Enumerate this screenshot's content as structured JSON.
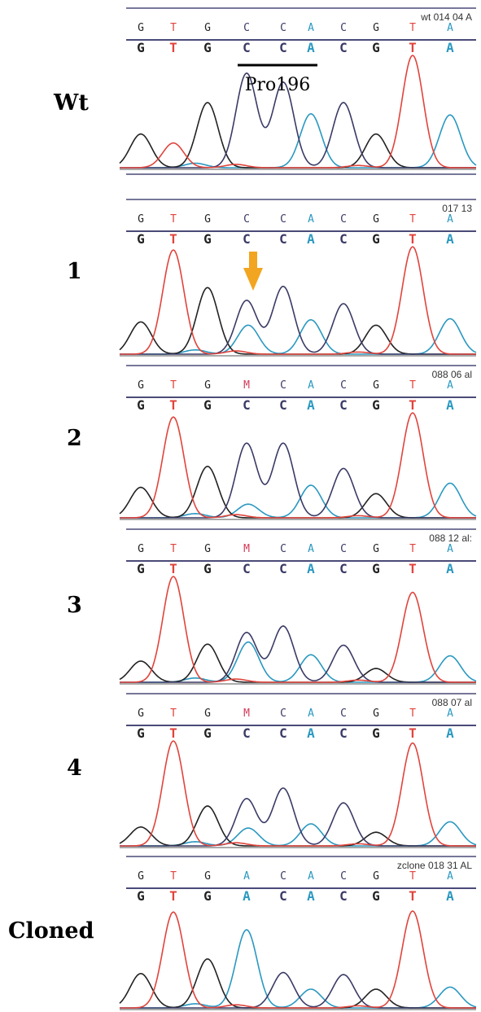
{
  "colors": {
    "A": "#2a98c0",
    "C": "#3a3a66",
    "G": "#222222",
    "T": "#e0443c",
    "M": "#d43a58",
    "frame": "#4a4a78",
    "arrow": "#f2a520"
  },
  "annotation": {
    "codon_label": "Pro196"
  },
  "panels": [
    {
      "label": "Wt",
      "sample_id": "wt 014 04 A",
      "called_bases": [
        "G",
        "T",
        "G",
        "C",
        "C",
        "A",
        "C",
        "G",
        "T",
        "A"
      ],
      "edited_bases": [
        "G",
        "T",
        "G",
        "C",
        "C",
        "A",
        "C",
        "G",
        "T",
        "A"
      ],
      "peaks": [
        {
          "base": "G",
          "h": 0.3
        },
        {
          "base": "T",
          "h": 0.22
        },
        {
          "base": "G",
          "h": 0.58
        },
        {
          "base": "C",
          "h": 0.84
        },
        {
          "base": "C",
          "h": 0.76
        },
        {
          "base": "A",
          "h": 0.48
        },
        {
          "base": "C",
          "h": 0.58
        },
        {
          "base": "G",
          "h": 0.3
        },
        {
          "base": "T",
          "h": 1.0
        },
        {
          "base": "A",
          "h": 0.47
        }
      ],
      "secondary_peak": null
    },
    {
      "label": "1",
      "sample_id": "017 13",
      "called_bases": [
        "G",
        "T",
        "G",
        "C",
        "C",
        "A",
        "C",
        "G",
        "T",
        "A"
      ],
      "edited_bases": [
        "G",
        "T",
        "G",
        "C",
        "C",
        "A",
        "C",
        "G",
        "T",
        "A"
      ],
      "peaks": [
        {
          "base": "G",
          "h": 0.3
        },
        {
          "base": "T",
          "h": 0.97
        },
        {
          "base": "G",
          "h": 0.62
        },
        {
          "base": "C",
          "h": 0.5
        },
        {
          "base": "C",
          "h": 0.63
        },
        {
          "base": "A",
          "h": 0.32
        },
        {
          "base": "C",
          "h": 0.47
        },
        {
          "base": "G",
          "h": 0.27
        },
        {
          "base": "T",
          "h": 1.0
        },
        {
          "base": "A",
          "h": 0.33
        }
      ],
      "secondary_peak": {
        "position": 4,
        "base": "A",
        "h": 0.27
      },
      "arrow_at": 4
    },
    {
      "label": "2",
      "sample_id": "088 06 al",
      "called_bases": [
        "G",
        "T",
        "G",
        "M",
        "C",
        "A",
        "C",
        "G",
        "T",
        "A"
      ],
      "edited_bases": [
        "G",
        "T",
        "G",
        "C",
        "C",
        "A",
        "C",
        "G",
        "T",
        "A"
      ],
      "peaks": [
        {
          "base": "G",
          "h": 0.29
        },
        {
          "base": "T",
          "h": 0.96
        },
        {
          "base": "G",
          "h": 0.49
        },
        {
          "base": "C",
          "h": 0.71
        },
        {
          "base": "C",
          "h": 0.71
        },
        {
          "base": "A",
          "h": 0.31
        },
        {
          "base": "C",
          "h": 0.47
        },
        {
          "base": "G",
          "h": 0.23
        },
        {
          "base": "T",
          "h": 1.0
        },
        {
          "base": "A",
          "h": 0.33
        }
      ],
      "secondary_peak": {
        "position": 4,
        "base": "A",
        "h": 0.13
      }
    },
    {
      "label": "3",
      "sample_id": "088 12 al:",
      "called_bases": [
        "G",
        "T",
        "G",
        "M",
        "C",
        "A",
        "C",
        "G",
        "T",
        "A"
      ],
      "edited_bases": [
        "G",
        "T",
        "G",
        "C",
        "C",
        "A",
        "C",
        "G",
        "T",
        "A"
      ],
      "peaks": [
        {
          "base": "G",
          "h": 0.2
        },
        {
          "base": "T",
          "h": 1.0
        },
        {
          "base": "G",
          "h": 0.36
        },
        {
          "base": "C",
          "h": 0.47
        },
        {
          "base": "C",
          "h": 0.53
        },
        {
          "base": "A",
          "h": 0.26
        },
        {
          "base": "C",
          "h": 0.35
        },
        {
          "base": "G",
          "h": 0.13
        },
        {
          "base": "T",
          "h": 0.85
        },
        {
          "base": "A",
          "h": 0.25
        }
      ],
      "secondary_peak": {
        "position": 4,
        "base": "A",
        "h": 0.38
      }
    },
    {
      "label": "4",
      "sample_id": "088 07 al",
      "called_bases": [
        "G",
        "T",
        "G",
        "M",
        "C",
        "A",
        "C",
        "G",
        "T",
        "A"
      ],
      "edited_bases": [
        "G",
        "T",
        "G",
        "C",
        "C",
        "A",
        "C",
        "G",
        "T",
        "A"
      ],
      "peaks": [
        {
          "base": "G",
          "h": 0.18
        },
        {
          "base": "T",
          "h": 1.0
        },
        {
          "base": "G",
          "h": 0.38
        },
        {
          "base": "C",
          "h": 0.45
        },
        {
          "base": "C",
          "h": 0.55
        },
        {
          "base": "A",
          "h": 0.21
        },
        {
          "base": "C",
          "h": 0.41
        },
        {
          "base": "G",
          "h": 0.13
        },
        {
          "base": "T",
          "h": 0.98
        },
        {
          "base": "A",
          "h": 0.23
        }
      ],
      "secondary_peak": {
        "position": 4,
        "base": "A",
        "h": 0.17
      }
    },
    {
      "label": "Cloned",
      "sample_id": "zclone 018 31 AL",
      "called_bases": [
        "G",
        "T",
        "G",
        "A",
        "C",
        "A",
        "C",
        "G",
        "T",
        "A"
      ],
      "edited_bases": [
        "G",
        "T",
        "G",
        "A",
        "C",
        "A",
        "C",
        "G",
        "T",
        "A"
      ],
      "peaks": [
        {
          "base": "G",
          "h": 0.33
        },
        {
          "base": "T",
          "h": 0.92
        },
        {
          "base": "G",
          "h": 0.47
        },
        {
          "base": "A",
          "h": 0.75
        },
        {
          "base": "C",
          "h": 0.34
        },
        {
          "base": "A",
          "h": 0.18
        },
        {
          "base": "C",
          "h": 0.32
        },
        {
          "base": "G",
          "h": 0.18
        },
        {
          "base": "T",
          "h": 0.93
        },
        {
          "base": "A",
          "h": 0.2
        }
      ],
      "secondary_peak": null
    }
  ]
}
